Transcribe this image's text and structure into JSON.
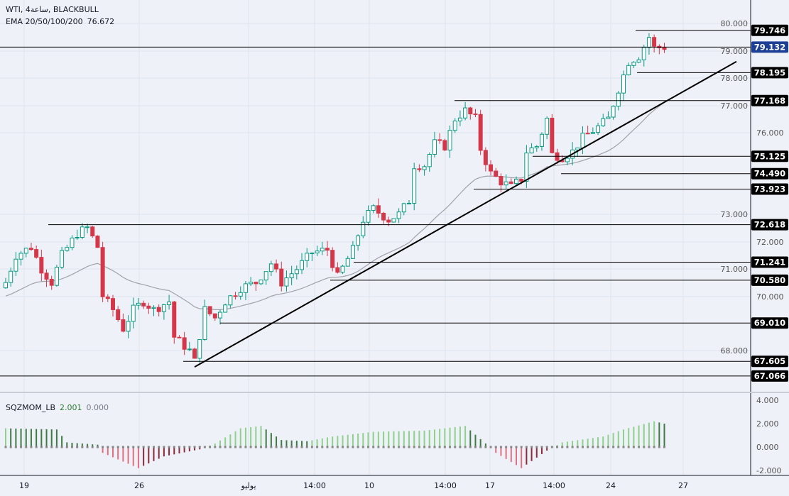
{
  "header": {
    "symbol_line": "WTI, 4ساعة, BLACKBULL",
    "ema_label": "EMA 20/50/100/200",
    "ema_value": "76.672"
  },
  "indicator": {
    "name": "SQZMOM_LB",
    "value1": "2.001",
    "value2": "0.000"
  },
  "colors": {
    "background": "#eef1f8",
    "bull": "#089981",
    "bear": "#d5374a",
    "ema": "#a0a3aa",
    "price_label": "#1e3f96",
    "level_label": "#000000",
    "mom_up_pos": "#8fd08c",
    "mom_down_pos": "#3f7a45",
    "mom_down_neg": "#e0707f",
    "mom_up_neg": "#8b2a38"
  },
  "chart_data": {
    "type": "candlestick",
    "bar_count": 130,
    "key_closes": [
      [
        0,
        70.5
      ],
      [
        2,
        71.5
      ],
      [
        5,
        71.8
      ],
      [
        7,
        71.0
      ],
      [
        9,
        70.5
      ],
      [
        11,
        71.5
      ],
      [
        14,
        72.3
      ],
      [
        16,
        72.5
      ],
      [
        18,
        71.8
      ],
      [
        19,
        70.0
      ],
      [
        21,
        69.5
      ],
      [
        23,
        68.8
      ],
      [
        25,
        69.5
      ],
      [
        27,
        69.8
      ],
      [
        29,
        69.5
      ],
      [
        32,
        69.8
      ],
      [
        33,
        68.5
      ],
      [
        36,
        68.0
      ],
      [
        37,
        67.6
      ],
      [
        39,
        69.5
      ],
      [
        41,
        69.2
      ],
      [
        43,
        69.8
      ],
      [
        46,
        70.3
      ],
      [
        49,
        70.5
      ],
      [
        52,
        71.2
      ],
      [
        54,
        70.5
      ],
      [
        57,
        71.0
      ],
      [
        60,
        71.6
      ],
      [
        63,
        71.7
      ],
      [
        65,
        70.7
      ],
      [
        68,
        71.7
      ],
      [
        70,
        72.8
      ],
      [
        72,
        73.2
      ],
      [
        75,
        72.8
      ],
      [
        77,
        73.0
      ],
      [
        79,
        73.5
      ],
      [
        80,
        74.8
      ],
      [
        82,
        74.8
      ],
      [
        84,
        75.6
      ],
      [
        86,
        75.5
      ],
      [
        88,
        76.5
      ],
      [
        90,
        76.8
      ],
      [
        92,
        76.5
      ],
      [
        93,
        75.4
      ],
      [
        95,
        74.5
      ],
      [
        97,
        74.2
      ],
      [
        99,
        74.0
      ],
      [
        101,
        74.3
      ],
      [
        102,
        75.3
      ],
      [
        104,
        75.5
      ],
      [
        106,
        76.5
      ],
      [
        107,
        75.2
      ],
      [
        109,
        75.1
      ],
      [
        111,
        75.3
      ],
      [
        113,
        75.8
      ],
      [
        116,
        76.2
      ],
      [
        118,
        76.5
      ],
      [
        120,
        77.6
      ],
      [
        122,
        78.6
      ],
      [
        124,
        78.8
      ],
      [
        126,
        79.5
      ],
      [
        127,
        79.1
      ],
      [
        129,
        79.132
      ]
    ],
    "key_momentum": [
      [
        0,
        1.6
      ],
      [
        10,
        1.5
      ],
      [
        12,
        0.4
      ],
      [
        18,
        0.2
      ],
      [
        19,
        -0.5
      ],
      [
        26,
        -1.8
      ],
      [
        31,
        -0.8
      ],
      [
        38,
        -0.2
      ],
      [
        41,
        0.3
      ],
      [
        46,
        1.6
      ],
      [
        50,
        1.8
      ],
      [
        54,
        0.6
      ],
      [
        59,
        0.5
      ],
      [
        64,
        0.9
      ],
      [
        72,
        1.3
      ],
      [
        82,
        1.4
      ],
      [
        90,
        1.8
      ],
      [
        94,
        0.3
      ],
      [
        96,
        -0.5
      ],
      [
        101,
        -1.8
      ],
      [
        106,
        -0.3
      ],
      [
        109,
        0.4
      ],
      [
        117,
        0.9
      ],
      [
        121,
        1.5
      ],
      [
        127,
        2.2
      ],
      [
        129,
        2.0
      ]
    ],
    "price_axis": {
      "ticks": [
        "80.000",
        "79.000",
        "78.000",
        "77.000",
        "76.000",
        "73.000",
        "72.000",
        "71.000",
        "70.000",
        "68.000"
      ],
      "range": [
        66.7,
        80.3
      ]
    },
    "momentum_axis": {
      "ticks": [
        "4.000",
        "2.000",
        "0.000",
        "-2.000"
      ]
    },
    "time_axis": {
      "ticks": [
        "19",
        "26",
        "يوليو",
        "14:00",
        "10",
        "14:00",
        "17",
        "14:00",
        "24",
        "27"
      ]
    },
    "current_price": "79.132",
    "levels": [
      "79.746",
      "78.195",
      "77.168",
      "75.125",
      "74.490",
      "73.923",
      "72.618",
      "71.241",
      "70.580",
      "69.010",
      "67.605",
      "67.066"
    ],
    "trendline": {
      "from_bar": 37,
      "from_price": 67.4,
      "to_price": 78.6
    }
  }
}
